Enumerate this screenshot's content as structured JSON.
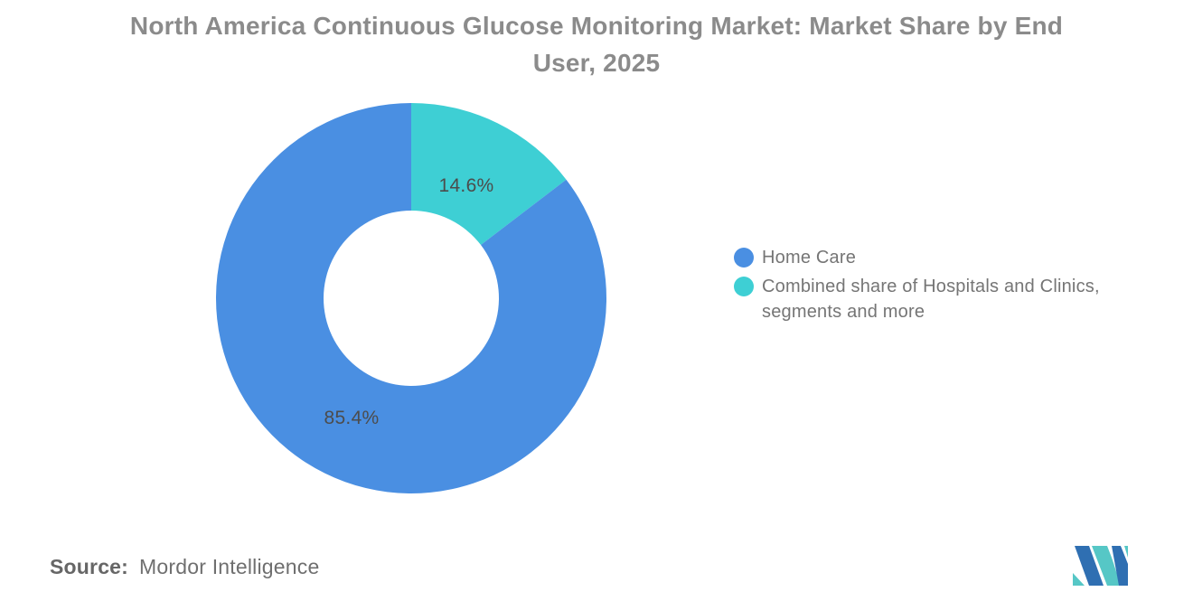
{
  "header": {
    "title_lines": [
      "North America Continuous Glucose Monitoring Market: Market Share by End",
      "User, 2025"
    ]
  },
  "chart_data": {
    "type": "pie",
    "subtype": "donut",
    "title": "North America Continuous Glucose Monitoring Market: Market Share by End User, 2025",
    "unit": "%",
    "slices": [
      {
        "name": "Combined share of Hospitals and Clinics, segments and more",
        "value": 14.6,
        "label": "14.6%",
        "color": "#3ecfd4"
      },
      {
        "name": "Home Care",
        "value": 85.4,
        "label": "85.4%",
        "color": "#4a8fe2"
      }
    ],
    "start_angle_deg": 0,
    "direction": "clockwise",
    "inner_radius_ratio": 0.45,
    "legend_position": "right",
    "data_labels": "inside"
  },
  "legend": {
    "items": [
      {
        "label": "Home Care",
        "color": "#4a8fe2"
      },
      {
        "label": "Combined share of Hospitals and Clinics, segments and more",
        "color": "#3ecfd4"
      }
    ]
  },
  "source": {
    "label": "Source:",
    "text": "Mordor Intelligence"
  },
  "logo": {
    "name": "Mordor Intelligence logo",
    "blue": "#2f6fb2",
    "teal": "#56c7c6"
  }
}
